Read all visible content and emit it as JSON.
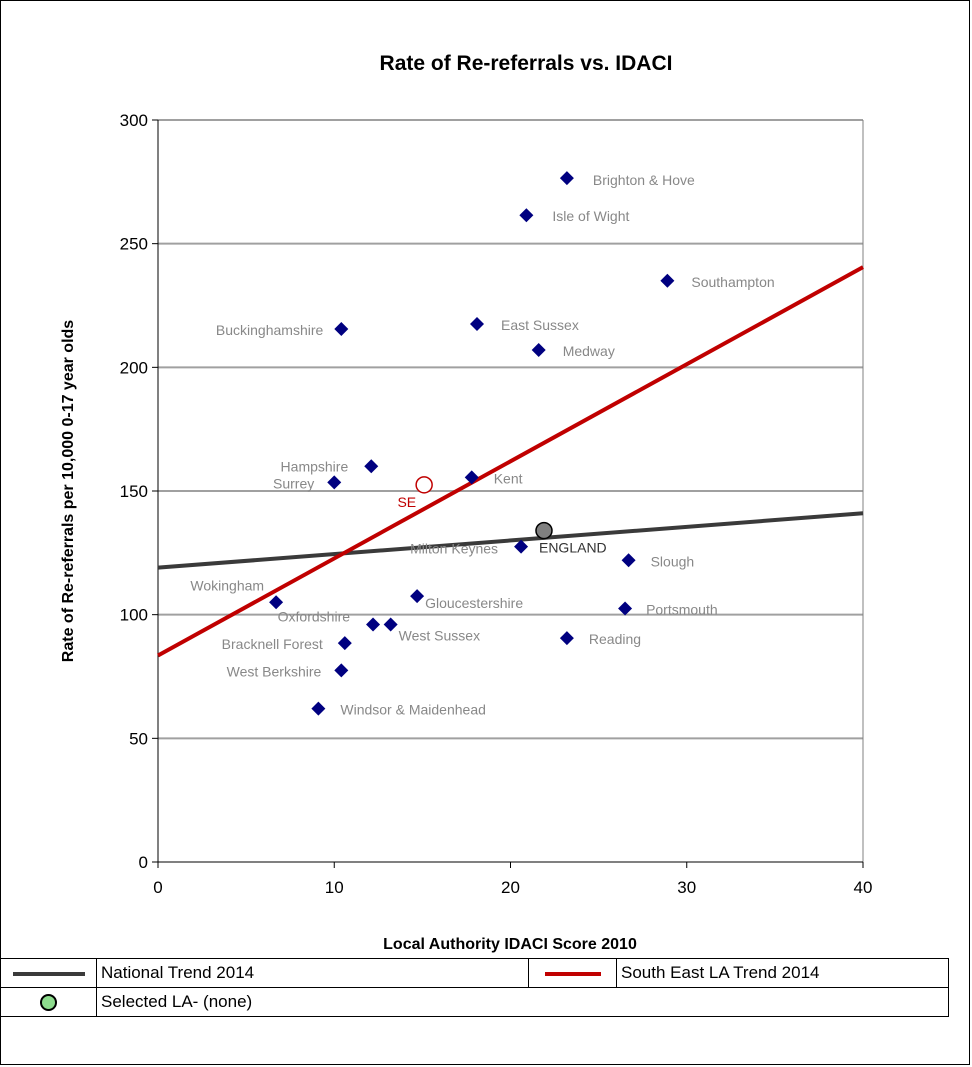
{
  "colors": {
    "marker": "#000080",
    "national_trend": "#3a3a3a",
    "se_trend": "#c00000",
    "label": "#888888",
    "england_marker": "#808080",
    "se_marker": "#c00000",
    "selected_marker": "#8edc8e",
    "grid": "#a0a0a0"
  },
  "chart_data": {
    "type": "scatter",
    "title": "Rate of Re-referrals vs. IDACI",
    "xlabel": "Local Authority IDACI Score 2010",
    "ylabel": "Rate of Re-referrals per 10,000 0-17 year olds",
    "xlim": [
      0,
      40
    ],
    "ylim": [
      0,
      300
    ],
    "xticks": [
      0,
      10,
      20,
      30,
      40
    ],
    "yticks": [
      0,
      50,
      100,
      150,
      200,
      250,
      300
    ],
    "grid": "horizontal",
    "points": [
      {
        "label": "Brighton & Hove",
        "x": 23.2,
        "y": 276.5
      },
      {
        "label": "Isle of Wight",
        "x": 20.9,
        "y": 261.5
      },
      {
        "label": "Southampton",
        "x": 28.9,
        "y": 235
      },
      {
        "label": "Buckinghamshire",
        "x": 10.4,
        "y": 215.5
      },
      {
        "label": "East Sussex",
        "x": 18.1,
        "y": 217.5
      },
      {
        "label": "Medway",
        "x": 21.6,
        "y": 207
      },
      {
        "label": "Hampshire",
        "x": 12.1,
        "y": 160
      },
      {
        "label": "Surrey",
        "x": 10.0,
        "y": 153.5
      },
      {
        "label": "Kent",
        "x": 17.8,
        "y": 155.5
      },
      {
        "label": "Milton Keynes",
        "x": 20.6,
        "y": 127.5
      },
      {
        "label": "Slough",
        "x": 26.7,
        "y": 122
      },
      {
        "label": "Wokingham",
        "x": 6.7,
        "y": 105
      },
      {
        "label": "Gloucestershire",
        "x": 14.7,
        "y": 107.5
      },
      {
        "label": "Portsmouth",
        "x": 26.5,
        "y": 102.5
      },
      {
        "label": "Oxfordshire",
        "x": 12.2,
        "y": 96
      },
      {
        "label": "West Sussex",
        "x": 13.2,
        "y": 96
      },
      {
        "label": "Bracknell Forest",
        "x": 10.6,
        "y": 88.5
      },
      {
        "label": "Reading",
        "x": 23.2,
        "y": 90.5
      },
      {
        "label": "West Berkshire",
        "x": 10.4,
        "y": 77.5
      },
      {
        "label": "Windsor & Maidenhead",
        "x": 9.1,
        "y": 62
      }
    ],
    "special_points": [
      {
        "label": "ENGLAND",
        "x": 21.9,
        "y": 134
      },
      {
        "label": "SE",
        "x": 15.1,
        "y": 152.5
      }
    ],
    "trend_lines": [
      {
        "name": "National Trend 2014",
        "x": [
          0,
          40
        ],
        "y": [
          119,
          141
        ]
      },
      {
        "name": "South East LA Trend 2014",
        "x": [
          0,
          40
        ],
        "y": [
          83.5,
          240.5
        ]
      }
    ]
  },
  "legend": {
    "national": "National Trend 2014",
    "south_east": "South East LA Trend 2014",
    "selected": "Selected LA- (none)"
  }
}
